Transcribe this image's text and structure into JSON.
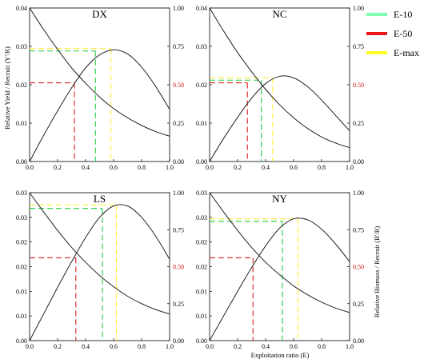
{
  "chart_data": {
    "type": "line",
    "shared": {
      "x_label": "Exploitation ratio (E)",
      "y_label_left": "Relative Yield / Recruit (Y'/R)",
      "y_label_right": "Relative Biomass / Recruit (B'/R)",
      "x_ticks": [
        "0.0",
        "0.2",
        "0.4",
        "0.6",
        "0.8",
        "1.0"
      ],
      "xlim": [
        0,
        1
      ]
    },
    "legend": {
      "position": "top-right",
      "items": [
        {
          "label": "E-10",
          "color": "#80ffb0"
        },
        {
          "label": "E-50",
          "color": "#e81818"
        },
        {
          "label": "E-max",
          "color": "#ffff20"
        }
      ]
    },
    "panels": [
      {
        "id": "dx",
        "title": "DX",
        "ylim_left": [
          0,
          0.04
        ],
        "left_ticks": [
          {
            "label": "0.00",
            "value": 0
          },
          {
            "label": "0.01",
            "value": 0.01
          },
          {
            "label": "0.02",
            "value": 0.02
          },
          {
            "label": "0.03",
            "value": 0.03
          },
          {
            "label": "0.04",
            "value": 0.04
          }
        ],
        "right_ticks": [
          {
            "label": "0.00",
            "value": 0
          },
          {
            "label": "0.25",
            "value": 0.25
          },
          {
            "label": "0.50",
            "value": 0.5,
            "red": true
          },
          {
            "label": "0.75",
            "value": 0.75
          },
          {
            "label": "1.00",
            "value": 1
          }
        ],
        "yield_curve": {
          "x": [
            0,
            0.1,
            0.2,
            0.3,
            0.4,
            0.5,
            0.6,
            0.7,
            0.8,
            0.9,
            1.0
          ],
          "y": [
            0,
            0.0068,
            0.0132,
            0.0192,
            0.0244,
            0.0278,
            0.0291,
            0.028,
            0.0246,
            0.0196,
            0.0136
          ]
        },
        "biomass_curve": {
          "x": [
            0,
            0.1,
            0.2,
            0.3,
            0.4,
            0.5,
            0.6,
            0.7,
            0.8,
            0.9,
            1.0
          ],
          "y": [
            1.0,
            0.86,
            0.73,
            0.61,
            0.51,
            0.42,
            0.345,
            0.285,
            0.235,
            0.195,
            0.165
          ]
        },
        "e10": {
          "x": 0.47,
          "y": 0.0288
        },
        "e50": {
          "x": 0.32,
          "y": 0.0205
        },
        "emax": {
          "x": 0.58,
          "y": 0.0295
        }
      },
      {
        "id": "nc",
        "title": "NC",
        "ylim_left": [
          0,
          0.04
        ],
        "left_ticks": [
          {
            "label": "0.00",
            "value": 0
          },
          {
            "label": "0.01",
            "value": 0.01
          },
          {
            "label": "0.02",
            "value": 0.02
          },
          {
            "label": "0.03",
            "value": 0.03
          },
          {
            "label": "0.04",
            "value": 0.04
          }
        ],
        "right_ticks": [
          {
            "label": "0.00",
            "value": 0
          },
          {
            "label": "0.25",
            "value": 0.25
          },
          {
            "label": "0.50",
            "value": 0.5,
            "red": true
          },
          {
            "label": "0.75",
            "value": 0.75
          },
          {
            "label": "1.00",
            "value": 1
          }
        ],
        "yield_curve": {
          "x": [
            0,
            0.1,
            0.2,
            0.3,
            0.4,
            0.5,
            0.6,
            0.7,
            0.8,
            0.9,
            1.0
          ],
          "y": [
            0,
            0.006,
            0.0115,
            0.0165,
            0.0203,
            0.0222,
            0.0218,
            0.0195,
            0.016,
            0.012,
            0.008
          ]
        },
        "biomass_curve": {
          "x": [
            0,
            0.1,
            0.2,
            0.3,
            0.4,
            0.5,
            0.6,
            0.7,
            0.8,
            0.9,
            1.0
          ],
          "y": [
            1.0,
            0.85,
            0.71,
            0.585,
            0.47,
            0.37,
            0.285,
            0.215,
            0.16,
            0.12,
            0.09
          ]
        },
        "e10": {
          "x": 0.37,
          "y": 0.0212
        },
        "e50": {
          "x": 0.27,
          "y": 0.0205
        },
        "emax": {
          "x": 0.45,
          "y": 0.0218
        }
      },
      {
        "id": "ls",
        "title": "LS",
        "ylim_left": [
          0,
          0.03
        ],
        "left_ticks": [
          {
            "label": "0.00",
            "value": 0
          },
          {
            "label": "0.01",
            "value": 0.005
          },
          {
            "label": "0.01",
            "value": 0.01
          },
          {
            "label": "0.02",
            "value": 0.015
          },
          {
            "label": "0.02",
            "value": 0.02
          },
          {
            "label": "0.03",
            "value": 0.025
          },
          {
            "label": "0.03",
            "value": 0.03
          }
        ],
        "right_ticks": [
          {
            "label": "0.00",
            "value": 0
          },
          {
            "label": "0.25",
            "value": 0.25
          },
          {
            "label": "0.50",
            "value": 0.5,
            "red": true
          },
          {
            "label": "0.75",
            "value": 0.75
          },
          {
            "label": "1.00",
            "value": 1
          }
        ],
        "yield_curve": {
          "x": [
            0,
            0.1,
            0.2,
            0.3,
            0.4,
            0.5,
            0.6,
            0.7,
            0.8,
            0.9,
            1.0
          ],
          "y": [
            0,
            0.0054,
            0.0108,
            0.016,
            0.0209,
            0.025,
            0.0273,
            0.0273,
            0.025,
            0.0212,
            0.0165
          ]
        },
        "biomass_curve": {
          "x": [
            0,
            0.1,
            0.2,
            0.3,
            0.4,
            0.5,
            0.6,
            0.7,
            0.8,
            0.9,
            1.0
          ],
          "y": [
            1.0,
            0.87,
            0.745,
            0.63,
            0.53,
            0.44,
            0.365,
            0.3,
            0.25,
            0.21,
            0.18
          ]
        },
        "e10": {
          "x": 0.52,
          "y": 0.0268
        },
        "e50": {
          "x": 0.33,
          "y": 0.0168
        },
        "emax": {
          "x": 0.62,
          "y": 0.0275
        }
      },
      {
        "id": "ny",
        "title": "NY",
        "ylim_left": [
          0,
          0.03
        ],
        "left_ticks": [
          {
            "label": "0.00",
            "value": 0
          },
          {
            "label": "0.01",
            "value": 0.005
          },
          {
            "label": "0.01",
            "value": 0.01
          },
          {
            "label": "0.02",
            "value": 0.015
          },
          {
            "label": "0.02",
            "value": 0.02
          },
          {
            "label": "0.03",
            "value": 0.025
          },
          {
            "label": "0.03",
            "value": 0.03
          }
        ],
        "right_ticks": [
          {
            "label": "0.00",
            "value": 0
          },
          {
            "label": "0.25",
            "value": 0.25
          },
          {
            "label": "0.50",
            "value": 0.5,
            "red": true
          },
          {
            "label": "0.75",
            "value": 0.75
          },
          {
            "label": "1.00",
            "value": 1
          }
        ],
        "yield_curve": {
          "x": [
            0,
            0.1,
            0.2,
            0.3,
            0.4,
            0.5,
            0.6,
            0.7,
            0.8,
            0.9,
            1.0
          ],
          "y": [
            0,
            0.005,
            0.01,
            0.0148,
            0.0192,
            0.0228,
            0.0247,
            0.0245,
            0.0226,
            0.0196,
            0.016
          ]
        },
        "biomass_curve": {
          "x": [
            0,
            0.1,
            0.2,
            0.3,
            0.4,
            0.5,
            0.6,
            0.7,
            0.8,
            0.9,
            1.0
          ],
          "y": [
            1.0,
            0.87,
            0.745,
            0.63,
            0.53,
            0.445,
            0.37,
            0.31,
            0.26,
            0.22,
            0.19
          ]
        },
        "e10": {
          "x": 0.52,
          "y": 0.0242
        },
        "e50": {
          "x": 0.31,
          "y": 0.0168
        },
        "emax": {
          "x": 0.63,
          "y": 0.0247
        }
      }
    ]
  }
}
